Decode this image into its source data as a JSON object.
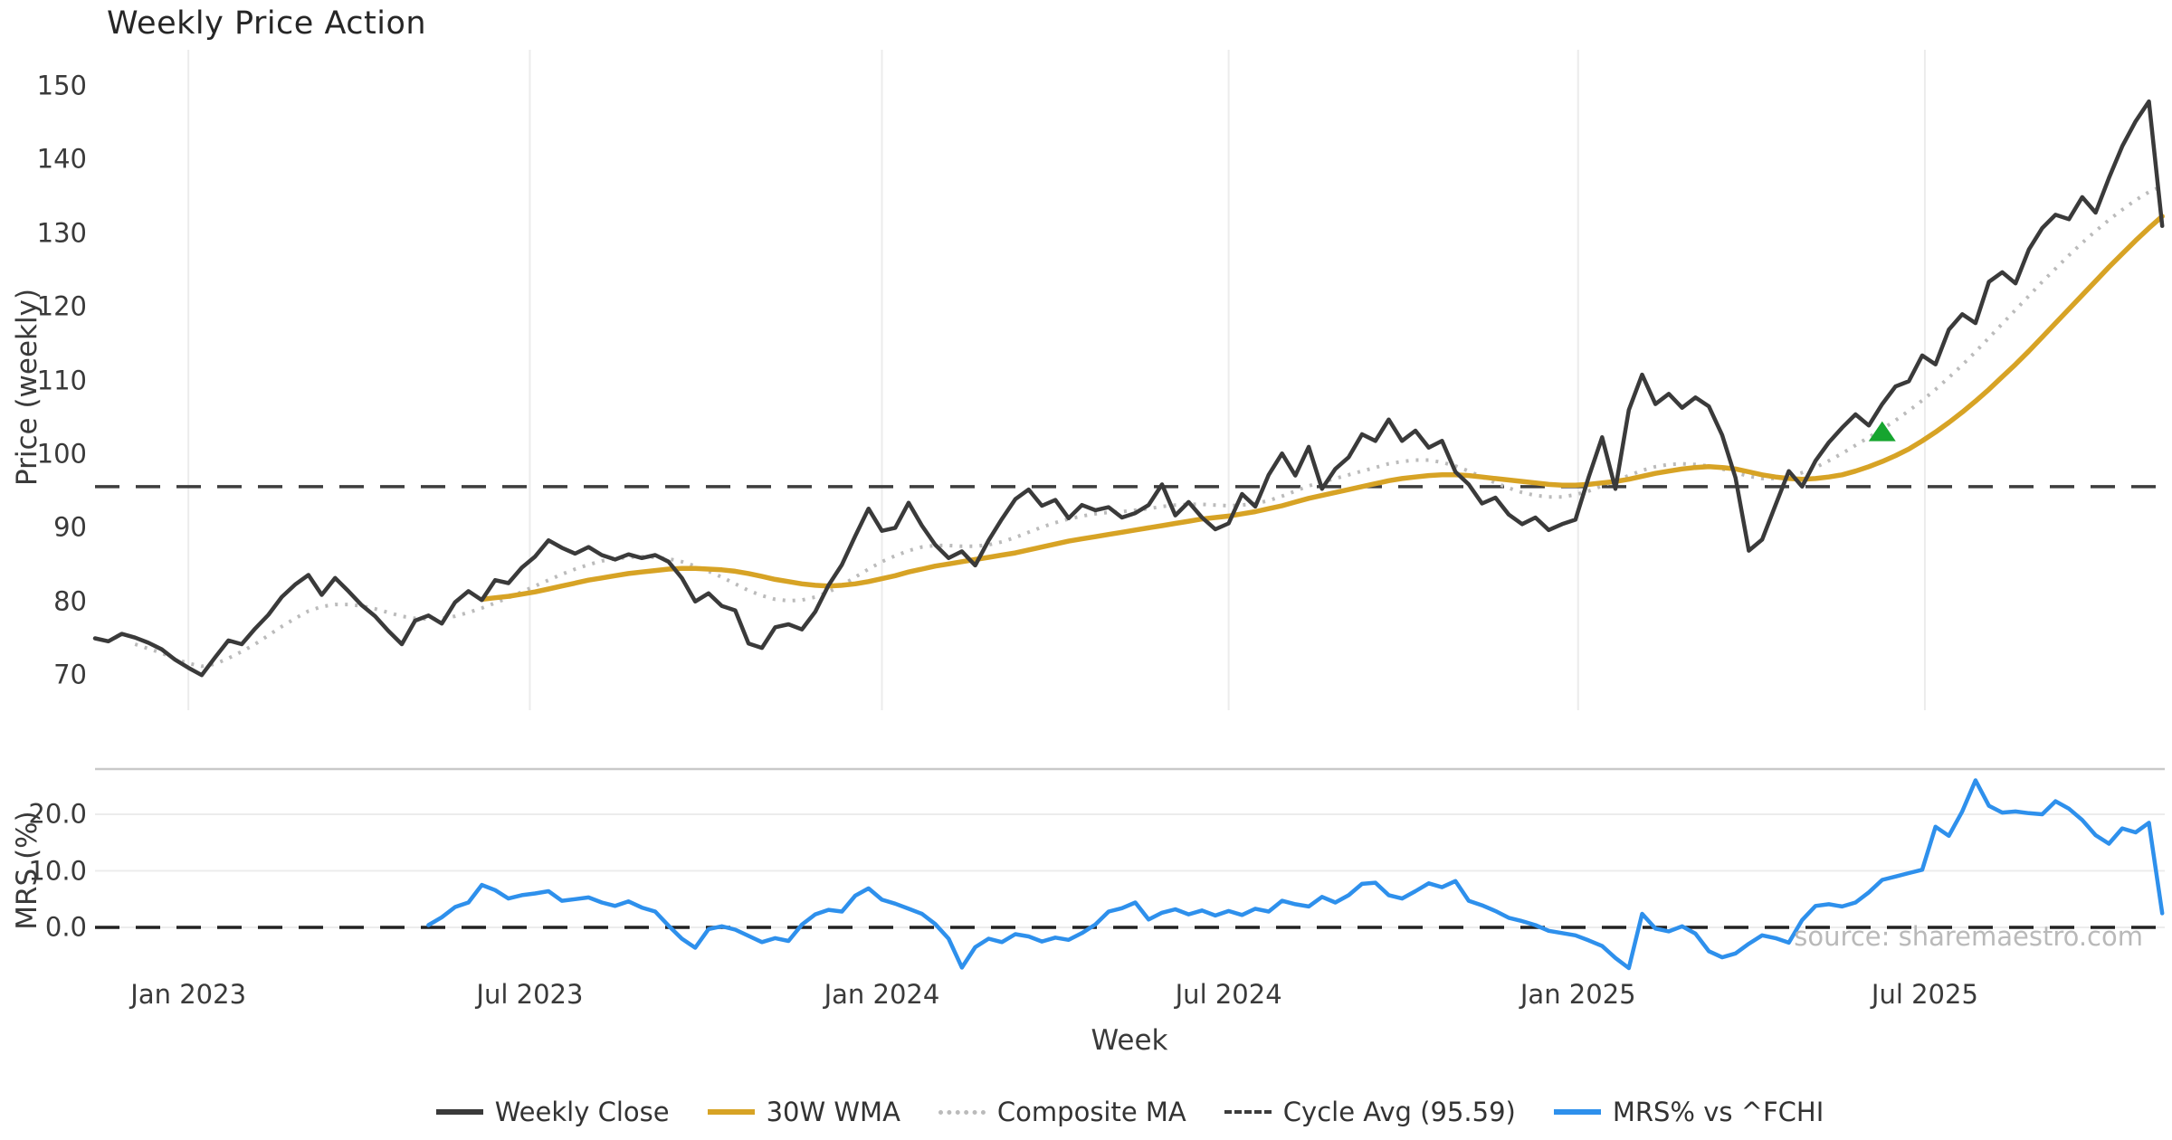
{
  "title": "Weekly Price Action",
  "source_text": "source: sharemaestro.com",
  "colors": {
    "close": "#3a3a3a",
    "wma": "#d7a325",
    "composite": "#bbbbbb",
    "cycle_avg": "#3d3d3d",
    "mrs": "#2e90ec",
    "signal": "#16a52f",
    "grid": "#ececec",
    "spine": "#c9c9c9",
    "zero_line": "#222222",
    "tick_text": "#3a3a3a",
    "source_text_color": "#b9b9b9"
  },
  "price_panel": {
    "ylabel": "Price (weekly)",
    "ylim": [
      65,
      155
    ],
    "yticks": [
      {
        "label": "150",
        "value": 150
      },
      {
        "label": "140",
        "value": 140
      },
      {
        "label": "130",
        "value": 130
      },
      {
        "label": "120",
        "value": 120
      },
      {
        "label": "110",
        "value": 110
      },
      {
        "label": "100",
        "value": 100
      },
      {
        "label": "90",
        "value": 90
      },
      {
        "label": "80",
        "value": 80
      },
      {
        "label": "70",
        "value": 70
      }
    ],
    "cycle_avg_value": 95.59
  },
  "mrs_panel": {
    "ylabel": "MRS (%)",
    "ylim": [
      -8.8,
      28
    ],
    "yticks": [
      {
        "label": "20.0",
        "value": 20
      },
      {
        "label": "10.0",
        "value": 10
      },
      {
        "label": "0.0",
        "value": 0
      }
    ],
    "zero_line_value": 0
  },
  "x_axis": {
    "label": "Week",
    "ticks": [
      {
        "label": "Jan 2023",
        "week": 7
      },
      {
        "label": "Jul 2023",
        "week": 32.6
      },
      {
        "label": "Jan 2024",
        "week": 59
      },
      {
        "label": "Jul 2024",
        "week": 85
      },
      {
        "label": "Jan 2025",
        "week": 111.2
      },
      {
        "label": "Jul 2025",
        "week": 137.2
      }
    ]
  },
  "legend": [
    {
      "label": "Weekly Close",
      "series": "close",
      "line": "solid",
      "weight": 6,
      "color": "close"
    },
    {
      "label": "30W WMA",
      "series": "wma",
      "line": "solid",
      "weight": 6,
      "color": "wma"
    },
    {
      "label": "Composite MA",
      "series": "composite",
      "line": "dotted",
      "weight": 5,
      "color": "composite"
    },
    {
      "label": "Cycle Avg (95.59)",
      "series": "cycle_avg",
      "line": "dashed",
      "weight": 4,
      "color": "cycle_avg"
    },
    {
      "label": "MRS% vs ^FCHI",
      "series": "mrs",
      "line": "solid",
      "weight": 6,
      "color": "mrs"
    }
  ],
  "chart_data": {
    "type": "line",
    "x_unit": "week_index",
    "x_range_note": "weekly points, ~Nov 2022 to Nov 2025; week 7 = Jan 2023, 26 weeks per half-year tick",
    "grid": {
      "price_panel": "vertical-only",
      "mrs_panel": "horizontal-only"
    },
    "legend_position": "bottom-center",
    "series": [
      {
        "name": "Weekly Close",
        "panel": "price",
        "color": "close",
        "style": "solid",
        "width": 4.5,
        "start_week": 0,
        "values": [
          75.0,
          74.6,
          75.6,
          75.1,
          74.4,
          73.5,
          72.1,
          71.0,
          70.0,
          72.4,
          74.7,
          74.2,
          76.3,
          78.2,
          80.6,
          82.3,
          83.6,
          80.9,
          83.2,
          81.4,
          79.5,
          78.0,
          76.0,
          74.2,
          77.4,
          78.1,
          77.0,
          79.9,
          81.4,
          80.2,
          82.9,
          82.5,
          84.6,
          86.1,
          88.3,
          87.3,
          86.5,
          87.4,
          86.3,
          85.7,
          86.4,
          85.9,
          86.3,
          85.4,
          83.2,
          80.0,
          81.1,
          79.4,
          78.8,
          74.3,
          73.7,
          76.5,
          76.9,
          76.2,
          78.6,
          82.2,
          85.0,
          88.9,
          92.6,
          89.6,
          90.0,
          93.4,
          90.3,
          87.7,
          85.9,
          86.8,
          84.9,
          88.3,
          91.2,
          93.9,
          95.2,
          93.0,
          93.8,
          91.3,
          93.1,
          92.4,
          92.8,
          91.4,
          92.0,
          93.1,
          95.9,
          91.7,
          93.5,
          91.4,
          89.8,
          90.6,
          94.6,
          92.9,
          97.2,
          100.1,
          97.1,
          101.0,
          95.3,
          98.0,
          99.6,
          102.7,
          101.8,
          104.7,
          101.8,
          103.2,
          100.9,
          101.8,
          97.6,
          95.9,
          93.3,
          94.1,
          91.8,
          90.5,
          91.4,
          89.7,
          90.5,
          91.1,
          96.9,
          102.3,
          95.3,
          106.0,
          110.8,
          106.8,
          108.2,
          106.3,
          107.7,
          106.5,
          102.6,
          96.8,
          86.9,
          88.4,
          93.1,
          97.7,
          95.6,
          99.1,
          101.6,
          103.6,
          105.4,
          103.9,
          106.8,
          109.2,
          109.9,
          113.4,
          112.2,
          116.9,
          119.0,
          117.8,
          123.4,
          124.7,
          123.2,
          127.8,
          130.7,
          132.5,
          131.9,
          134.9,
          132.8,
          137.5,
          141.8,
          145.2,
          147.9,
          131.0
        ]
      },
      {
        "name": "30W WMA",
        "panel": "price",
        "color": "wma",
        "style": "solid",
        "width": 5.5,
        "start_week": 29,
        "values": [
          80.3,
          80.5,
          80.7,
          81.0,
          81.3,
          81.7,
          82.1,
          82.5,
          82.9,
          83.2,
          83.5,
          83.8,
          84.0,
          84.2,
          84.4,
          84.5,
          84.5,
          84.4,
          84.3,
          84.1,
          83.8,
          83.4,
          83.0,
          82.7,
          82.4,
          82.2,
          82.1,
          82.2,
          82.4,
          82.7,
          83.1,
          83.5,
          84.0,
          84.4,
          84.8,
          85.1,
          85.4,
          85.7,
          86.0,
          86.3,
          86.6,
          87.0,
          87.4,
          87.8,
          88.2,
          88.5,
          88.8,
          89.1,
          89.4,
          89.7,
          90.0,
          90.3,
          90.6,
          90.9,
          91.2,
          91.4,
          91.6,
          91.9,
          92.2,
          92.6,
          93.0,
          93.5,
          94.0,
          94.4,
          94.8,
          95.2,
          95.6,
          96.0,
          96.4,
          96.7,
          96.9,
          97.1,
          97.2,
          97.2,
          97.1,
          96.9,
          96.7,
          96.5,
          96.3,
          96.1,
          95.9,
          95.8,
          95.8,
          95.9,
          96.1,
          96.3,
          96.6,
          97.0,
          97.4,
          97.7,
          98.0,
          98.2,
          98.3,
          98.2,
          98.0,
          97.6,
          97.2,
          96.9,
          96.7,
          96.6,
          96.7,
          96.9,
          97.2,
          97.7,
          98.3,
          99.0,
          99.8,
          100.7,
          101.8,
          103.0,
          104.3,
          105.7,
          107.2,
          108.8,
          110.5,
          112.2,
          114.0,
          115.9,
          117.8,
          119.7,
          121.6,
          123.5,
          125.4,
          127.2,
          129.0,
          130.7,
          132.3
        ]
      },
      {
        "name": "Composite MA",
        "panel": "price",
        "color": "composite",
        "style": "dotted",
        "width": 4,
        "start_week": 3,
        "values": [
          74.2,
          73.6,
          73.0,
          72.2,
          71.6,
          71.2,
          71.5,
          72.3,
          73.2,
          74.2,
          75.4,
          76.6,
          77.7,
          78.7,
          79.3,
          79.6,
          79.6,
          79.4,
          79.0,
          78.5,
          78.0,
          77.7,
          77.6,
          77.7,
          78.0,
          78.5,
          79.1,
          79.8,
          80.5,
          81.3,
          82.1,
          82.9,
          83.7,
          84.4,
          85.0,
          85.5,
          85.8,
          86.0,
          86.1,
          86.0,
          85.8,
          85.4,
          84.8,
          84.1,
          83.3,
          82.4,
          81.5,
          80.8,
          80.3,
          80.1,
          80.2,
          80.6,
          81.3,
          82.2,
          83.3,
          84.4,
          85.4,
          86.2,
          86.9,
          87.4,
          87.6,
          87.6,
          87.5,
          87.5,
          87.7,
          88.1,
          88.7,
          89.4,
          90.1,
          90.7,
          91.2,
          91.6,
          91.9,
          92.1,
          92.2,
          92.4,
          92.6,
          92.9,
          93.1,
          93.2,
          93.2,
          93.1,
          93.0,
          93.1,
          93.3,
          93.7,
          94.3,
          95.0,
          95.7,
          96.2,
          96.7,
          97.2,
          97.7,
          98.2,
          98.7,
          99.0,
          99.2,
          99.2,
          98.9,
          98.4,
          97.7,
          96.9,
          96.1,
          95.4,
          94.8,
          94.4,
          94.2,
          94.2,
          94.5,
          95.0,
          95.7,
          96.4,
          97.1,
          97.8,
          98.3,
          98.6,
          98.7,
          98.6,
          98.4,
          98.0,
          97.5,
          97.0,
          96.7,
          96.7,
          97.0,
          97.5,
          98.2,
          99.1,
          100.1,
          101.2,
          102.3,
          103.4,
          104.6,
          105.9,
          107.3,
          108.8,
          110.4,
          112.1,
          113.9,
          115.8,
          117.7,
          119.6,
          121.5,
          123.4,
          125.2,
          127.0,
          128.7,
          130.3,
          131.8,
          133.2,
          134.5,
          135.6,
          136.4
        ]
      },
      {
        "name": "MRS% vs ^FCHI",
        "panel": "mrs",
        "color": "mrs",
        "style": "solid",
        "width": 4.5,
        "start_week": 25,
        "values": [
          0.4,
          1.8,
          3.6,
          4.4,
          7.5,
          6.6,
          5.1,
          5.7,
          6.0,
          6.4,
          4.7,
          5.0,
          5.3,
          4.4,
          3.8,
          4.6,
          3.5,
          2.8,
          0.3,
          -2.0,
          -3.6,
          -0.3,
          0.2,
          -0.4,
          -1.5,
          -2.6,
          -1.9,
          -2.4,
          0.5,
          2.3,
          3.1,
          2.8,
          5.6,
          6.9,
          4.9,
          4.2,
          3.3,
          2.4,
          0.6,
          -2.0,
          -7.1,
          -3.5,
          -2.0,
          -2.6,
          -1.2,
          -1.6,
          -2.5,
          -1.8,
          -2.2,
          -1.0,
          0.5,
          2.8,
          3.4,
          4.4,
          1.4,
          2.6,
          3.2,
          2.3,
          3.0,
          2.1,
          2.9,
          2.2,
          3.3,
          2.8,
          4.7,
          4.1,
          3.7,
          5.4,
          4.4,
          5.7,
          7.7,
          7.9,
          5.7,
          5.1,
          6.4,
          7.8,
          7.1,
          8.2,
          4.7,
          3.9,
          2.9,
          1.7,
          1.1,
          0.4,
          -0.6,
          -1.0,
          -1.4,
          -2.3,
          -3.3,
          -5.4,
          -7.2,
          2.4,
          -0.2,
          -0.7,
          0.2,
          -1.1,
          -4.2,
          -5.3,
          -4.6,
          -2.9,
          -1.4,
          -1.9,
          -2.7,
          1.3,
          3.8,
          4.1,
          3.7,
          4.4,
          6.2,
          8.4,
          9.0,
          9.6,
          10.2,
          17.8,
          16.2,
          20.5,
          26.0,
          21.5,
          20.3,
          20.5,
          20.2,
          20.0,
          22.3,
          21.0,
          19.0,
          16.3,
          14.8,
          17.5,
          16.8,
          18.5,
          2.5
        ]
      }
    ],
    "reference_lines": [
      {
        "panel": "price",
        "value": 95.59,
        "style": "dashed",
        "color": "cycle_avg",
        "label": "Cycle Avg (95.59)"
      },
      {
        "panel": "mrs",
        "value": 0,
        "style": "dashed",
        "color": "zero_line"
      }
    ],
    "signal_marker": {
      "shape": "triangle-up",
      "week": 134,
      "price": 103.0,
      "color": "signal"
    }
  }
}
